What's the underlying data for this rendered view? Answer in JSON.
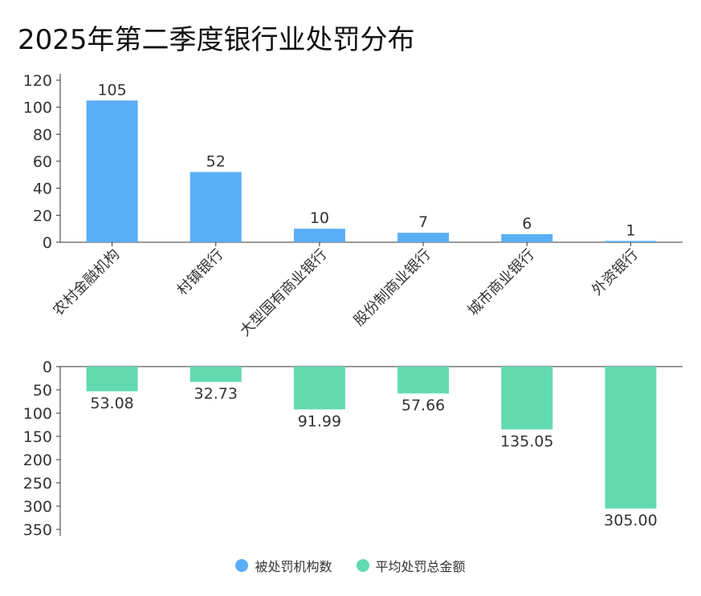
{
  "chart_data": {
    "title": "2025年第二季度银行业处罚分布",
    "categories": [
      "农村金融机构",
      "村镇银行",
      "大型国有商业银行",
      "股份制商业银行",
      "城市商业银行",
      "外资银行"
    ],
    "series": [
      {
        "name": "被处罚机构数",
        "type": "bar",
        "values": [
          105,
          52,
          10,
          7,
          6,
          1
        ],
        "labels": [
          "105",
          "52",
          "10",
          "7",
          "6",
          "1"
        ],
        "color": "#5aaef5",
        "ylim": [
          0,
          120
        ],
        "ticks": [
          "0",
          "20",
          "40",
          "60",
          "80",
          "100",
          "120"
        ]
      },
      {
        "name": "平均处罚总金额",
        "type": "bar",
        "direction": "down",
        "values": [
          53.08,
          32.73,
          91.99,
          57.66,
          135.05,
          305.0
        ],
        "labels": [
          "53.08",
          "32.73",
          "91.99",
          "57.66",
          "135.05",
          "305.00"
        ],
        "color": "#62dab0",
        "ylim": [
          0,
          350
        ],
        "ticks": [
          "0",
          "50",
          "100",
          "150",
          "200",
          "250",
          "300",
          "350"
        ]
      }
    ],
    "legend_position": "bottom-center",
    "grid": false
  }
}
